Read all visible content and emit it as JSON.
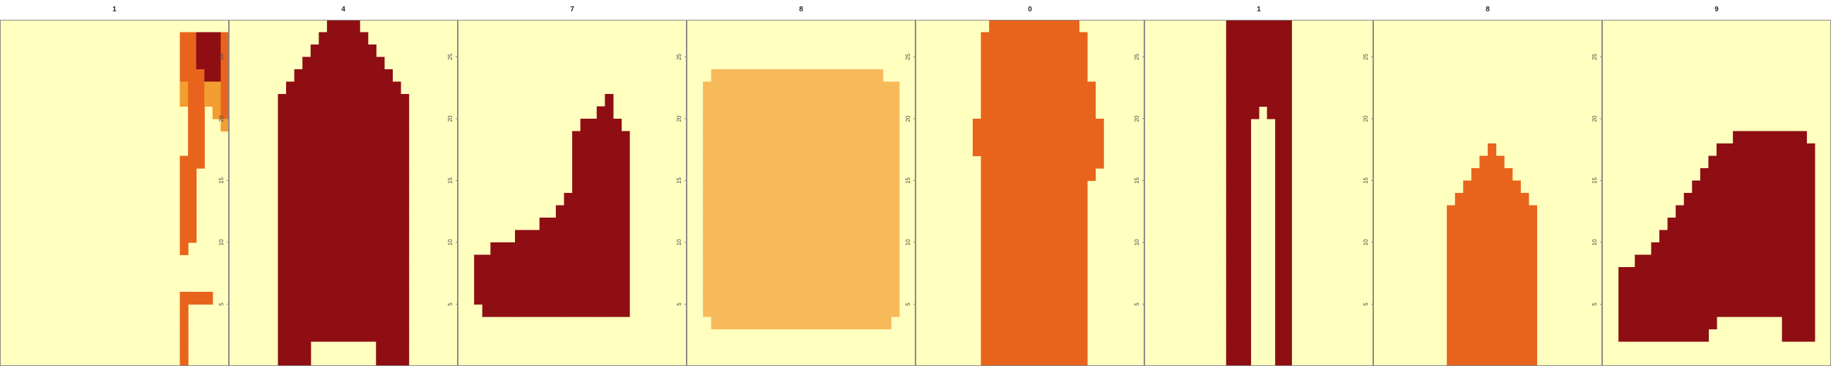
{
  "chart_data": {
    "type": "heatmap",
    "rows": 28,
    "cols": 28,
    "value_range": [
      0,
      255
    ],
    "y_ticks": [
      5,
      10,
      15,
      20,
      25
    ],
    "colors": {
      "background": "#FFFFBF",
      "scale": [
        "#FFFFBF",
        "#FFF2B0",
        "#FDE29C",
        "#FAD183",
        "#F7BA5B",
        "#F39E30",
        "#EF8418",
        "#E8641C",
        "#DB4B1C",
        "#C8331A",
        "#B01E15",
        "#8E0E13",
        "#6E0711"
      ],
      "frame": "#8a8a8a"
    },
    "panels": [
      {
        "title": "1",
        "image": [
          "............................",
          "......................ggkkkg",
          "......................ggkkkg",
          "......................ggkkkg",
          "......................gggkkg",
          "......................bggbbg",
          "......................bggbbg",
          ".......................gg.bg",
          ".......................gg..b",
          ".......................gg...",
          ".......................gg...",
          "......................ggg...",
          "......................gg....",
          "......................gg....",
          "......................gg....",
          "......................gg....",
          "......................gg....",
          "......................gg....",
          "......................g.....",
          "............................",
          "............................",
          "............................",
          "......................gggg..",
          "......................g.....",
          "......................g.....",
          "......................g.....",
          "......................g.....",
          "......................g....."
        ]
      },
      {
        "title": "4",
        "image": [
          "............kkkk............",
          "...........kkkkkk...........",
          "..........kkkkkkkk..........",
          ".........kkkkkkkkkk.........",
          "........kkkkkkkkkkkk........",
          ".......kkkkkkkkkkkkkk.......",
          "......kkkkkkkkkkkkkkkk......",
          "......kkkkkkkkkkkkkkkk......",
          "......kkkkkkkkkkkkkkkk......",
          "......kkkkkkkkkkkkkkkk......",
          "......kkkkkkkkkkkkkkkk......",
          "......kkkkkkkkkkkkkkkk......",
          "......kkkkkkkkkkkkkkkk......",
          "......kkkkkkkkkkkkkkkk......",
          "......kkkkkkkkkkkkkkkk......",
          "......kkkkkkkkkkkkkkkk......",
          "......kkkkkkkkkkkkkkkk......",
          "......kkkkkkkkkkkkkkkk......",
          "......kkkkkkkkkkkkkkkk......",
          "......kkkkkkkkkkkkkkkk......",
          "......kkkkkkkkkkkkkkkk......",
          "......kkkkkkkkkkkkkkkk......",
          "......kkkkkkkkkkkkkkkk......",
          "......kkkkkkkkkkkkkkkk......",
          "......kkkkkkkkkkkkkkkk......",
          "......kkkkkkkkkkkkkkkk......",
          "......kkkk........kkkk......",
          "......kkkk........kkkk......"
        ]
      },
      {
        "title": "7",
        "image": [
          "............................",
          "............................",
          "............................",
          "............................",
          "............................",
          "............................",
          "..................k.........",
          ".................kk.........",
          "...............kkkkk........",
          "..............kkkkkkk.......",
          "..............kkkkkkk.......",
          "..............kkkkkkk.......",
          "..............kkkkkkk.......",
          "..............kkkkkkk.......",
          ".............kkkkkkkk.......",
          "............kkkkkkkkk.......",
          "..........kkkkkkkkkkk.......",
          ".......kkkkkkkkkkkkkk.......",
          "....kkkkkkkkkkkkkkkkk.......",
          "..kkkkkkkkkkkkkkkkkkk.......",
          "..kkkkkkkkkkkkkkkkkkk.......",
          "..kkkkkkkkkkkkkkkkkkk.......",
          "..kkkkkkkkkkkkkkkkkkk.......",
          "...kkkkkkkkkkkkkkkkkk.......",
          "............................",
          "............................",
          "............................",
          "............................"
        ]
      },
      {
        "title": "8",
        "image": [
          "............................",
          "............................",
          "............................",
          "............................",
          "...ccccccccccccccccccccc....",
          "..cccccccccccccccccccccccc..",
          "..cccccccccccccccccccccccc..",
          "..cccccccccccccccccccccccc..",
          "..cccccccccccccccccccccccc..",
          "..cccccccccccccccccccccccc..",
          "..cccccccccccccccccccccccc..",
          "..cccccccccccccccccccccccc..",
          "..cccccccccccccccccccccccc..",
          "..cccccccccccccccccccccccc..",
          "..cccccccccccccccccccccccc..",
          "..cccccccccccccccccccccccc..",
          "..cccccccccccccccccccccccc..",
          "..cccccccccccccccccccccccc..",
          "..cccccccccccccccccccccccc..",
          "..cccccccccccccccccccccccc..",
          "..cccccccccccccccccccccccc..",
          "..cccccccccccccccccccccccc..",
          "..cccccccccccccccccccccccc..",
          "..cccccccccccccccccccccccc..",
          "...cccccccccccccccccccccc...",
          "............................",
          "............................",
          "............................"
        ]
      },
      {
        "title": "0",
        "image": [
          ".........ggggggggggg........",
          "........ggggggggggggg.......",
          "........ggggggggggggg.......",
          "........ggggggggggggg.......",
          "........ggggggggggggg.......",
          "........gggggggggggggg......",
          "........gggggggggggggg......",
          "........gggggggggggggg......",
          ".......gggggggggggggggg.....",
          ".......gggggggggggggggg.....",
          ".......gggggggggggggggg.....",
          "........ggggggggggggggg.....",
          "........gggggggggggggg......",
          "........ggggggggggggg.......",
          "........ggggggggggggg.......",
          "........ggggggggggggg.......",
          "........ggggggggggggg.......",
          "........ggggggggggggg.......",
          "........ggggggggggggg.......",
          "........ggggggggggggg.......",
          "........ggggggggggggg.......",
          "........ggggggggggggg.......",
          "........ggggggggggggg.......",
          "........ggggggggggggg.......",
          "........ggggggggggggg.......",
          "........ggggggggggggg.......",
          "........ggggggggggggg.......",
          "........ggggggggggggg......."
        ]
      },
      {
        "title": "1",
        "image": [
          "..........kkkkkkkk..........",
          "..........kkkkkkkk..........",
          "..........kkkkkkkk..........",
          "..........kkkkkkkk..........",
          "..........kkkkkkkk..........",
          "..........kkkkkkkk..........",
          "..........kkkkkkkk..........",
          "..........kkkk.kkk..........",
          "..........kkk...kk..........",
          "..........kkk...kk..........",
          "..........kkk...kk..........",
          "..........kkk...kk..........",
          "..........kkk...kk..........",
          "..........kkk...kk..........",
          "..........kkk...kk..........",
          "..........kkk...kk..........",
          "..........kkk...kk..........",
          "..........kkk...kk..........",
          "..........kkk...kk..........",
          "..........kkk...kk..........",
          "..........kkk...kk..........",
          "..........kkk...kk..........",
          "..........kkk...kk..........",
          "..........kkk...kk..........",
          "..........kkk...kk..........",
          "..........kkk...kk..........",
          "..........kkk...kk..........",
          "..........kkk...kk.........."
        ]
      },
      {
        "title": "8",
        "image": [
          "............................",
          "............................",
          "............................",
          "............................",
          "............................",
          "............................",
          "............................",
          "............................",
          "............................",
          "............................",
          "..............g.............",
          ".............ggg............",
          "............ggggg...........",
          "...........ggggggg..........",
          "..........ggggggggg.........",
          ".........ggggggggggg........",
          ".........ggggggggggg........",
          ".........ggggggggggg........",
          ".........ggggggggggg........",
          ".........ggggggggggg........",
          ".........ggggggggggg........",
          ".........ggggggggggg........",
          ".........ggggggggggg........",
          ".........ggggggggggg........",
          ".........ggggggggggg........",
          ".........ggggggggggg........",
          ".........ggggggggggg........",
          ".........ggggggggggg........"
        ]
      },
      {
        "title": "9",
        "image": [
          "............................",
          "............................",
          "............................",
          "............................",
          "............................",
          "............................",
          "............................",
          "............................",
          "............................",
          "................kkkkkkkkk...",
          "..............kkkkkkkkkkkk..",
          ".............kkkkkkkkkkkkk..",
          "............kkkkkkkkkkkkkk..",
          "...........kkkkkkkkkkkkkkk..",
          "..........kkkkkkkkkkkkkkkk..",
          ".........kkkkkkkkkkkkkkkkk..",
          "........kkkkkkkkkkkkkkkkkk..",
          ".......kkkkkkkkkkkkkkkkkkk..",
          "......kkkkkkkkkkkkkkkkkkkk..",
          "....kkkkkkkkkkkkkkkkkkkkkk..",
          "..kkkkkkkkkkkkkkkkkkkkkkkk..",
          "..kkkkkkkkkkkkkkkkkkkkkkkk..",
          "..kkkkkkkkkkkkkkkkkkkkkkkk..",
          "..kkkkkkkkkkkkkkkkkkkkkkkk..",
          "..kkkkkkkkkkkk........kkkk..",
          "..kkkkkkkkkkk.........kkkk..",
          "............................",
          "............................"
        ]
      }
    ]
  }
}
